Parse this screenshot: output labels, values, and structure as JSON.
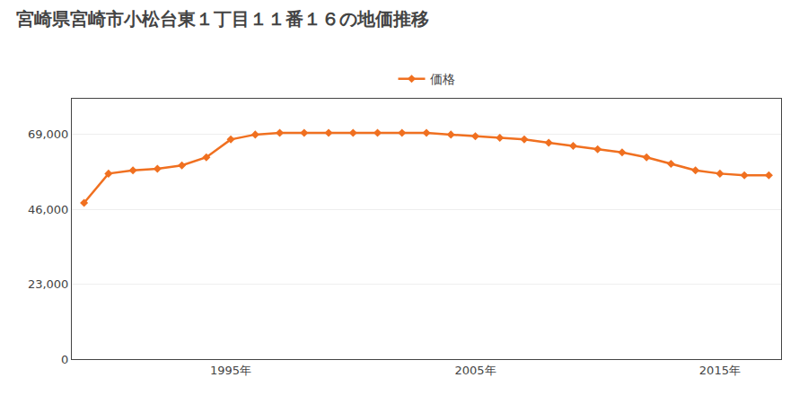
{
  "chart_data": {
    "type": "line",
    "title": "宮崎県宮崎市小松台東１丁目１１番１６の地価推移",
    "x": [
      1989,
      1990,
      1991,
      1992,
      1993,
      1994,
      1995,
      1996,
      1997,
      1998,
      1999,
      2000,
      2001,
      2002,
      2003,
      2004,
      2005,
      2006,
      2007,
      2008,
      2009,
      2010,
      2011,
      2012,
      2013,
      2014,
      2015,
      2016,
      2017
    ],
    "series": [
      {
        "name": "価格",
        "color": "#f07020",
        "marker": "diamond",
        "values": [
          48000,
          57000,
          58000,
          58500,
          59500,
          62000,
          67500,
          69000,
          69500,
          69500,
          69500,
          69500,
          69500,
          69500,
          69500,
          69000,
          68500,
          68000,
          67500,
          66500,
          65500,
          64500,
          63500,
          62000,
          60000,
          58000,
          57000,
          56500,
          56500
        ]
      }
    ],
    "xlim": [
      1988.5,
      2017.5
    ],
    "xticks": [
      {
        "value": 1995,
        "label": "1995年"
      },
      {
        "value": 2005,
        "label": "2005年"
      },
      {
        "value": 2015,
        "label": "2015年"
      }
    ],
    "ylim": [
      0,
      80000
    ],
    "yticks": [
      0,
      {
        "value": 23000,
        "label": "23,000"
      },
      {
        "value": 46000,
        "label": "46,000"
      },
      {
        "value": 69000,
        "label": "69,000"
      }
    ],
    "grid": true,
    "legend": "top"
  }
}
